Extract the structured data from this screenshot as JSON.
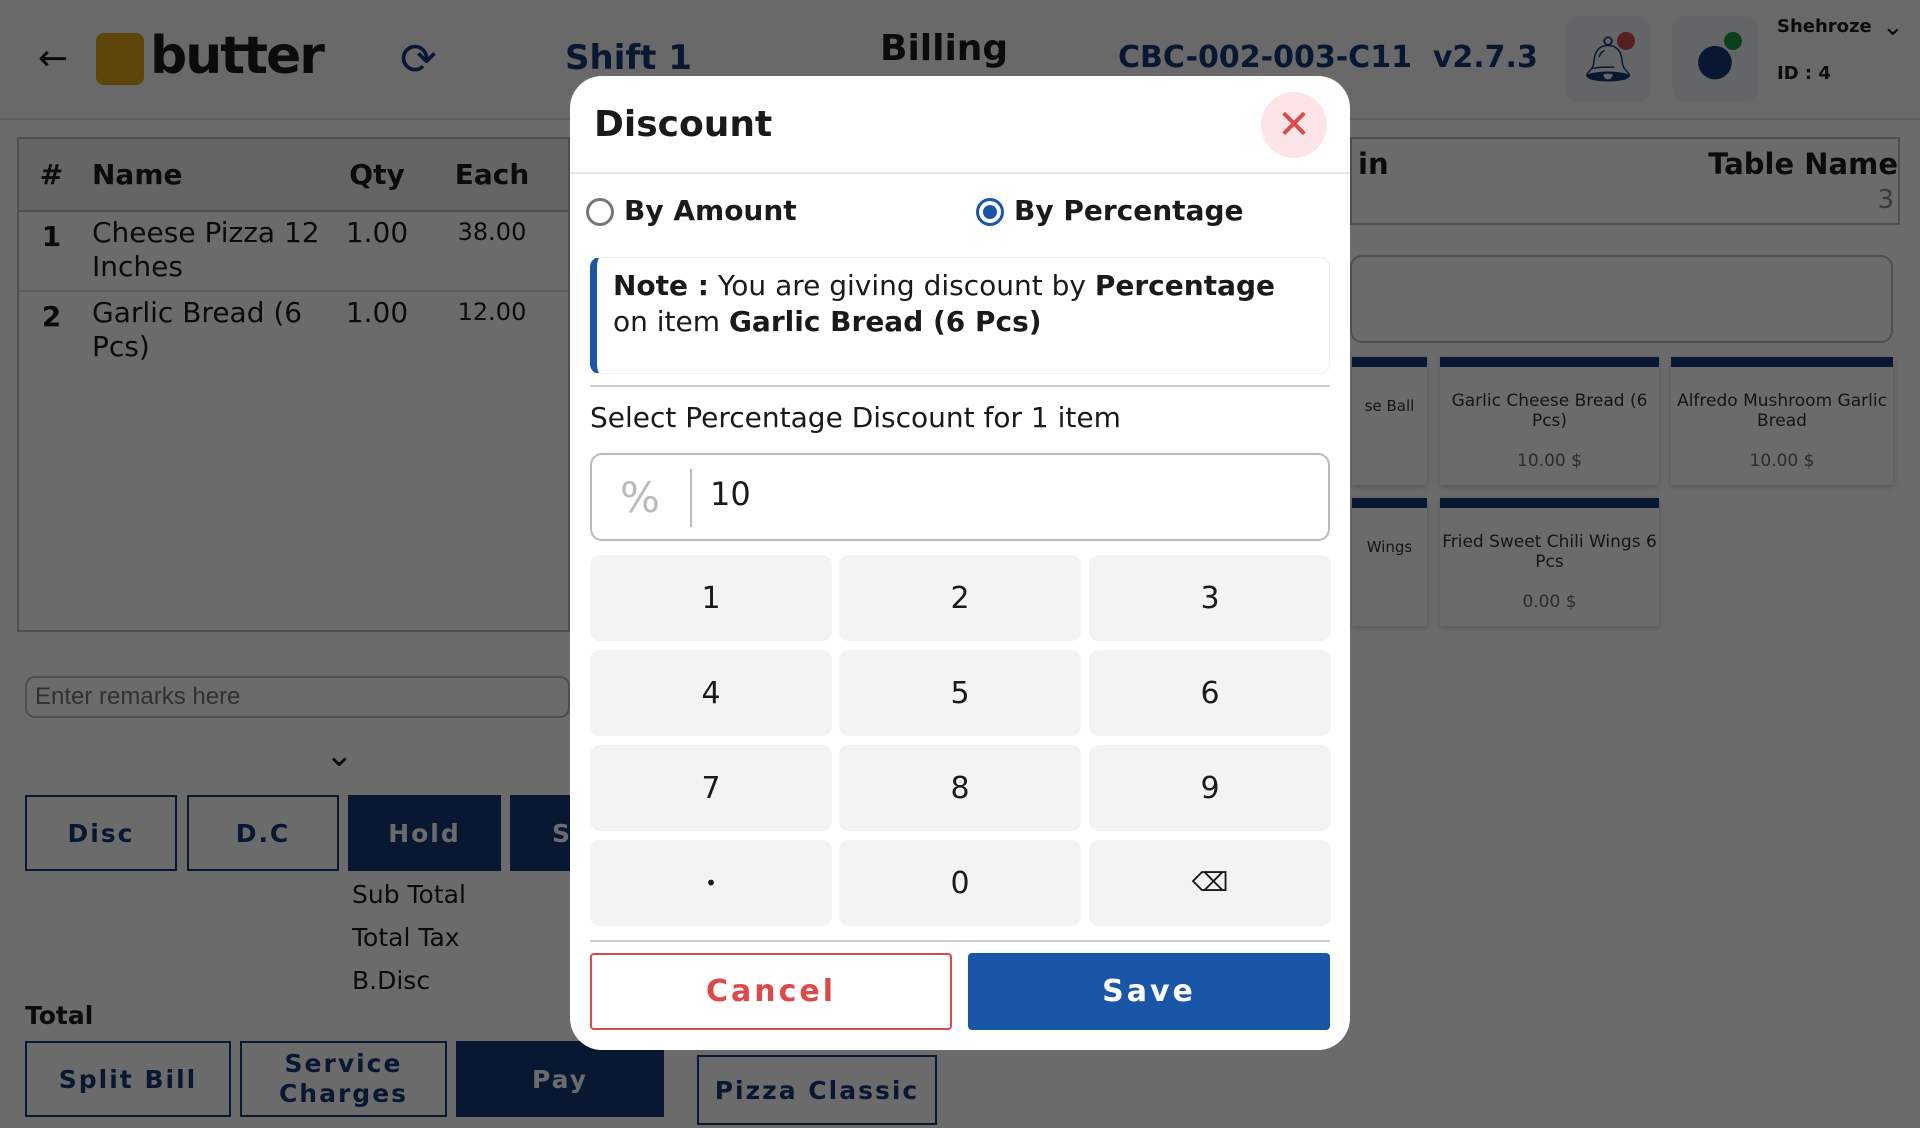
{
  "header": {
    "title": "Billing",
    "shift": "Shift 1",
    "terminal": "CBC-002-003-C11",
    "version": "v2.7.3",
    "user_name": "Shehroze",
    "user_id": "ID : 4",
    "logo": "butter",
    "icons": [
      "back-arrow-icon",
      "sync-icon",
      "bell-icon",
      "user-icon",
      "chevron-down-icon"
    ]
  },
  "order_table": {
    "columns": [
      "#",
      "Name",
      "Qty",
      "Each"
    ],
    "rows": [
      {
        "no": "1",
        "name": "Cheese Pizza 12 Inches",
        "qty": "1.00",
        "each": "38.00"
      },
      {
        "no": "2",
        "name": "Garlic Bread (6 Pcs)",
        "qty": "1.00",
        "each": "12.00"
      }
    ]
  },
  "remarks": {
    "placeholder": "Enter remarks here"
  },
  "actions": {
    "disc": "Disc",
    "dc": "D.C",
    "hold": "Hold",
    "s": "S",
    "split": "Split Bill",
    "service": "Service Charges",
    "pay": "Pay"
  },
  "totals": {
    "sub_total": "Sub Total",
    "total_tax": "Total Tax",
    "bdisc": "B.Disc",
    "total": "Total"
  },
  "category": "Pizza Classic",
  "table_info": {
    "left_label": "in",
    "label": "Table Name",
    "value": "3"
  },
  "products": [
    {
      "name": "se Ball",
      "price": ""
    },
    {
      "name": "Garlic Cheese Bread (6 Pcs)",
      "price": "10.00 $"
    },
    {
      "name": "Alfredo Mushroom Garlic Bread",
      "price": "10.00 $"
    },
    {
      "name": "Wings",
      "price": ""
    },
    {
      "name": "Fried Sweet Chili Wings 6 Pcs",
      "price": "0.00 $"
    }
  ],
  "modal": {
    "title": "Discount",
    "option_amount": "By Amount",
    "option_percentage": "By Percentage",
    "selected": "By Percentage",
    "note_label": "Note :",
    "note_text1": " You are giving discount by ",
    "note_bold1": "Percentage",
    "note_text2": " on item ",
    "note_bold2": "Garlic Bread (6 Pcs)",
    "select_label": "Select Percentage Discount for 1 item",
    "prefix": "%",
    "value": "10",
    "keys": [
      "1",
      "2",
      "3",
      "4",
      "5",
      "6",
      "7",
      "8",
      "9",
      "•",
      "0"
    ],
    "cancel": "Cancel",
    "save": "Save",
    "accent": "#1a56a8",
    "danger": "#e04848"
  }
}
